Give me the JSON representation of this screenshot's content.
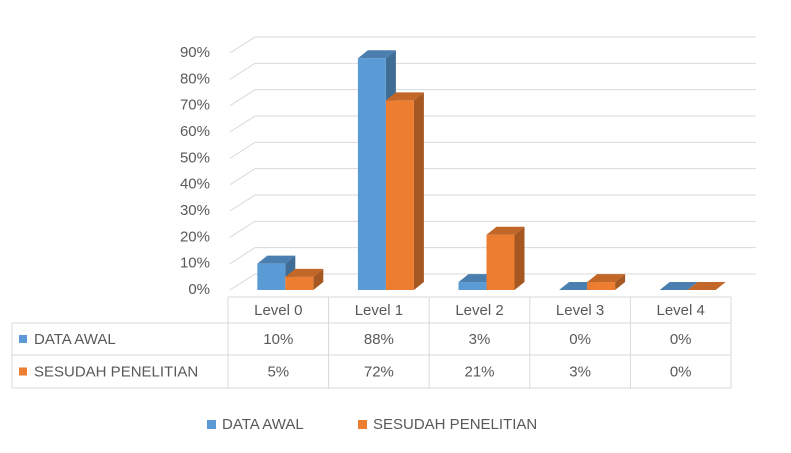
{
  "chart_data": {
    "type": "bar3d",
    "categories": [
      "Level 0",
      "Level 1",
      "Level 2",
      "Level 3",
      "Level 4"
    ],
    "series": [
      {
        "name": "DATA AWAL",
        "color": "#5b9bd5",
        "values": [
          10,
          88,
          3,
          0,
          0
        ],
        "value_labels": [
          "10%",
          "88%",
          "3%",
          "0%",
          "0%"
        ]
      },
      {
        "name": "SESUDAH PENELITIAN",
        "color": "#ed7d31",
        "values": [
          5,
          72,
          21,
          3,
          0
        ],
        "value_labels": [
          "5%",
          "72%",
          "21%",
          "3%",
          "0%"
        ]
      }
    ],
    "ylim": [
      0,
      90
    ],
    "yticks": [
      {
        "value": 0,
        "label": "0%"
      },
      {
        "value": 10,
        "label": "10%"
      },
      {
        "value": 20,
        "label": "20%"
      },
      {
        "value": 30,
        "label": "30%"
      },
      {
        "value": 40,
        "label": "40%"
      },
      {
        "value": 50,
        "label": "50%"
      },
      {
        "value": 60,
        "label": "60%"
      },
      {
        "value": 70,
        "label": "70%"
      },
      {
        "value": 80,
        "label": "80%"
      },
      {
        "value": 90,
        "label": "90%"
      }
    ],
    "grid": true,
    "legend": "bottom",
    "data_table": true
  }
}
